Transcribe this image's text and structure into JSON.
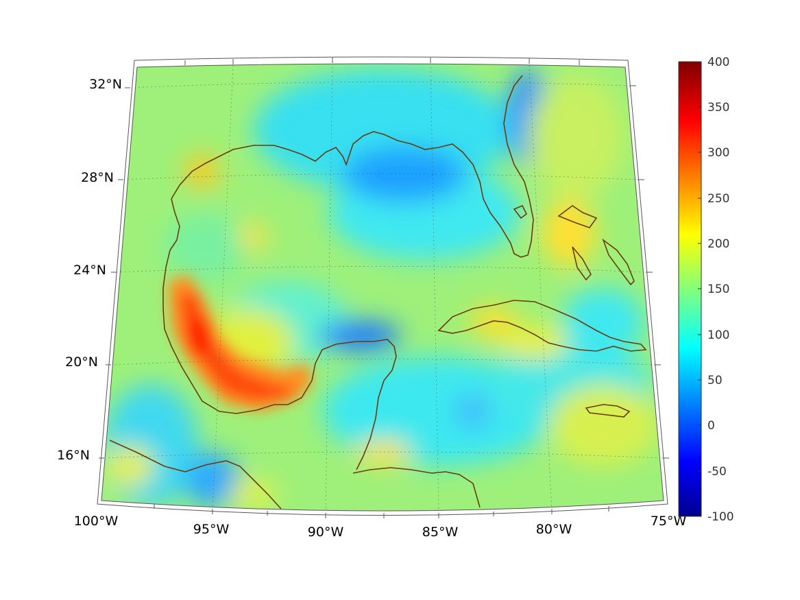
{
  "map": {
    "longitude_labels": [
      "100°W",
      "95°W",
      "90°W",
      "85°W",
      "80°W",
      "75°W"
    ],
    "latitude_labels": [
      "32°N",
      "28°N",
      "24°N",
      "20°N",
      "16°N"
    ],
    "lon_range": [
      -100,
      -75
    ],
    "lat_range": [
      14,
      33
    ],
    "projection": "conic",
    "grid": "dotted",
    "coastline_color": "#6b3a0a"
  },
  "colorbar": {
    "ticks": [
      "400",
      "350",
      "300",
      "250",
      "200",
      "150",
      "100",
      "50",
      "0",
      "-50",
      "-100"
    ],
    "range": [
      -100,
      400
    ],
    "colormap": "jet",
    "placement": "right"
  }
}
